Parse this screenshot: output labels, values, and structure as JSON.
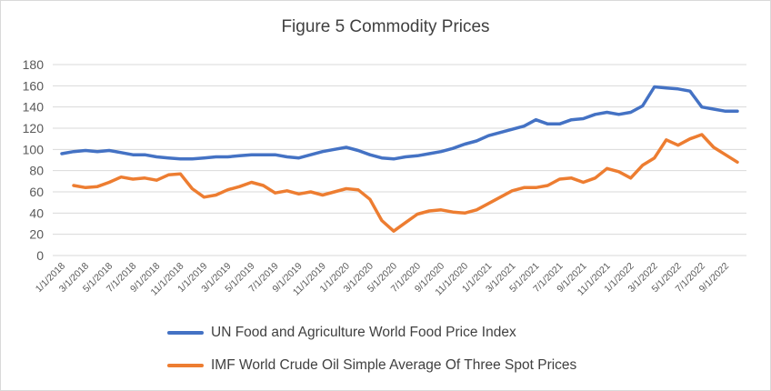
{
  "chart_data": {
    "type": "line",
    "title": "Figure 5 Commodity Prices",
    "xlabel": "",
    "ylabel": "",
    "ylim": [
      0,
      180
    ],
    "yticks": [
      "0",
      "20",
      "40",
      "60",
      "80",
      "100",
      "120",
      "140",
      "160",
      "180"
    ],
    "grid": true,
    "legend_position": "bottom",
    "x": [
      "1/1/2018",
      "2/1/2018",
      "3/1/2018",
      "4/1/2018",
      "5/1/2018",
      "6/1/2018",
      "7/1/2018",
      "8/1/2018",
      "9/1/2018",
      "10/1/2018",
      "11/1/2018",
      "12/1/2018",
      "1/1/2019",
      "2/1/2019",
      "3/1/2019",
      "4/1/2019",
      "5/1/2019",
      "6/1/2019",
      "7/1/2019",
      "8/1/2019",
      "9/1/2019",
      "10/1/2019",
      "11/1/2019",
      "12/1/2019",
      "1/1/2020",
      "2/1/2020",
      "3/1/2020",
      "4/1/2020",
      "5/1/2020",
      "6/1/2020",
      "7/1/2020",
      "8/1/2020",
      "9/1/2020",
      "10/1/2020",
      "11/1/2020",
      "12/1/2020",
      "1/1/2021",
      "2/1/2021",
      "3/1/2021",
      "4/1/2021",
      "5/1/2021",
      "6/1/2021",
      "7/1/2021",
      "8/1/2021",
      "9/1/2021",
      "10/1/2021",
      "11/1/2021",
      "12/1/2021",
      "1/1/2022",
      "2/1/2022",
      "3/1/2022",
      "4/1/2022",
      "5/1/2022",
      "6/1/2022",
      "7/1/2022",
      "8/1/2022",
      "9/1/2022",
      "10/1/2022"
    ],
    "x_tick_labels": [
      "1/1/2018",
      "3/1/2018",
      "5/1/2018",
      "7/1/2018",
      "9/1/2018",
      "11/1/2018",
      "1/1/2019",
      "3/1/2019",
      "5/1/2019",
      "7/1/2019",
      "9/1/2019",
      "11/1/2019",
      "1/1/2020",
      "3/1/2020",
      "5/1/2020",
      "7/1/2020",
      "9/1/2020",
      "11/1/2020",
      "1/1/2021",
      "3/1/2021",
      "5/1/2021",
      "7/1/2021",
      "9/1/2021",
      "11/1/2021",
      "1/1/2022",
      "3/1/2022",
      "5/1/2022",
      "7/1/2022",
      "9/1/2022"
    ],
    "series": [
      {
        "name": "UN Food and Agriculture World Food Price Index",
        "color": "#4472c4",
        "values": [
          96,
          98,
          99,
          98,
          99,
          97,
          95,
          95,
          93,
          92,
          91,
          91,
          92,
          93,
          93,
          94,
          95,
          95,
          95,
          93,
          92,
          95,
          98,
          100,
          102,
          99,
          95,
          92,
          91,
          93,
          94,
          96,
          98,
          101,
          105,
          108,
          113,
          116,
          119,
          122,
          128,
          124,
          124,
          128,
          129,
          133,
          135,
          133,
          135,
          141,
          159,
          158,
          157,
          155,
          140,
          138,
          136,
          136
        ]
      },
      {
        "name": "IMF World Crude Oil Simple Average Of Three Spot Prices",
        "color": "#ed7d31",
        "values": [
          null,
          66,
          64,
          65,
          69,
          74,
          72,
          73,
          71,
          76,
          77,
          63,
          55,
          57,
          62,
          65,
          69,
          66,
          59,
          61,
          58,
          60,
          57,
          60,
          63,
          62,
          53,
          33,
          23,
          31,
          39,
          42,
          43,
          41,
          40,
          43,
          49,
          55,
          61,
          64,
          64,
          66,
          72,
          73,
          69,
          73,
          82,
          79,
          73,
          85,
          92,
          109,
          104,
          110,
          114,
          102,
          95,
          88
        ]
      }
    ]
  }
}
